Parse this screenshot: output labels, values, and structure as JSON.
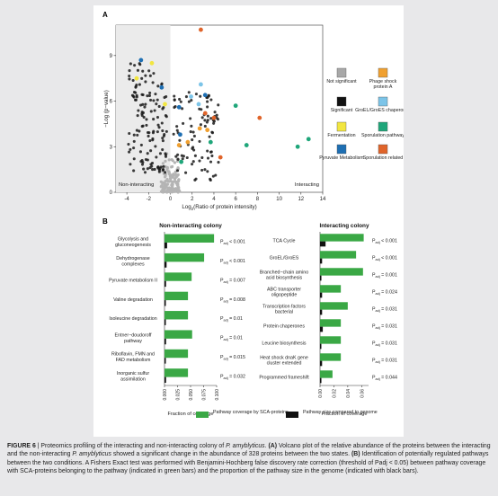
{
  "panel_a": {
    "label": "A",
    "ylabel": "−Log (p−value)",
    "xlabel_prefix": "Log",
    "xlabel_sub": "2",
    "xlabel_suffix": "(Ratio of protein intensity)",
    "region_left": "Non-interacting",
    "region_right": "Interacting",
    "legend": [
      {
        "label": "Not significant",
        "color": "#a8a8a8"
      },
      {
        "label": "Phage shock protein A",
        "color": "#f0a030"
      },
      {
        "label": "Significant",
        "color": "#111111"
      },
      {
        "label": "GroEL/GroES chaperones",
        "color": "#7cc4e8"
      },
      {
        "label": "Fermentation",
        "color": "#f2e640"
      },
      {
        "label": "Sporulation pathway",
        "color": "#1fa67a"
      },
      {
        "label": "Pyruvate Metabolism",
        "color": "#1e6fb3"
      },
      {
        "label": "Sporulation related",
        "color": "#e0642a"
      }
    ]
  },
  "panel_b": {
    "label": "B",
    "x_axis_title": "Fraction of coverage",
    "legend_green": "Pathway coverage by SCA-proteins",
    "legend_black": "Pathway size compared to genome",
    "padj_prefix": "P",
    "padj_sub": "adj"
  },
  "chart_data": [
    {
      "type": "scatter",
      "title": "",
      "xlabel": "Log2(Ratio of protein intensity)",
      "ylabel": "−Log (p−value)",
      "xlim": [
        -5,
        14
      ],
      "ylim": [
        0,
        11
      ],
      "xticks": [
        -4,
        -2,
        0,
        2,
        4,
        6,
        8,
        10,
        12,
        14
      ],
      "yticks": [
        0,
        3,
        6,
        9
      ],
      "series": [
        {
          "name": "Sporulation related",
          "points": [
            [
              2.8,
              10.7
            ],
            [
              8.2,
              4.9
            ],
            [
              4.0,
              4.9
            ],
            [
              3.2,
              5.2
            ],
            [
              4.6,
              2.3
            ]
          ]
        },
        {
          "name": "Sporulation pathway",
          "points": [
            [
              6.0,
              5.7
            ],
            [
              12.7,
              3.5
            ],
            [
              11.7,
              3.0
            ],
            [
              7.0,
              3.1
            ],
            [
              3.7,
              3.3
            ],
            [
              1.0,
              2.0
            ]
          ]
        },
        {
          "name": "Phage shock protein A",
          "points": [
            [
              1.6,
              3.3
            ],
            [
              2.7,
              4.2
            ],
            [
              3.4,
              4.1
            ],
            [
              0.8,
              3.1
            ]
          ]
        },
        {
          "name": "GroEL/GroES chaperones",
          "points": [
            [
              2.8,
              7.1
            ],
            [
              1.9,
              6.3
            ],
            [
              2.6,
              5.8
            ]
          ]
        },
        {
          "name": "Pyruvate Metabolism",
          "points": [
            [
              -2.7,
              8.7
            ],
            [
              3.2,
              6.4
            ],
            [
              0.8,
              5.6
            ],
            [
              -0.8,
              6.9
            ],
            [
              0.9,
              3.8
            ]
          ]
        },
        {
          "name": "Fermentation",
          "points": [
            [
              -1.7,
              8.5
            ],
            [
              -3.1,
              7.5
            ],
            [
              -0.5,
              5.8
            ]
          ]
        }
      ]
    },
    {
      "type": "bar",
      "title": "Non-interacting colony",
      "xlabel": "Fraction of coverage",
      "xlim": [
        0,
        0.1
      ],
      "xticks": [
        0,
        0.025,
        0.05,
        0.075,
        0.1
      ],
      "xtick_labels": [
        "0.000",
        "0.025",
        "0.050",
        "0.075",
        "0.100"
      ],
      "categories": [
        "Glycolysis and gluconeogenesis",
        "Dehydrogenase complexes",
        "Pyruvate metabolism II",
        "Valine degradation",
        "Isoleucine degradation",
        "Entner−doudoroff pathway",
        "Riboflavin, FMN and FAD metabolism",
        "Inorganic sulfur assimilation"
      ],
      "series": [
        {
          "name": "Pathway coverage by SCA-proteins",
          "values": [
            0.095,
            0.076,
            0.052,
            0.045,
            0.045,
            0.053,
            0.045,
            0.045
          ]
        },
        {
          "name": "Pathway size compared to genome",
          "values": [
            0.005,
            0.004,
            0.003,
            0.002,
            0.002,
            0.003,
            0.002,
            0.003
          ]
        }
      ],
      "padj": [
        "< 0.001",
        "< 0.001",
        "= 0.007",
        "= 0.008",
        "= 0.01",
        "= 0.01",
        "= 0.015",
        "= 0.032"
      ]
    },
    {
      "type": "bar",
      "title": "Interacting colony",
      "xlabel": "Fraction of coverage",
      "xlim": [
        0,
        0.07
      ],
      "xticks": [
        0,
        0.02,
        0.04,
        0.06
      ],
      "xtick_labels": [
        "0.00",
        "0.02",
        "0.04",
        "0.06"
      ],
      "categories": [
        "TCA Cycle",
        "GroEL/GroES",
        "Branched−chain amino acid biosynthesis",
        "ABC transporter oligopeptide",
        "Transcription factors bacterial",
        "Protein chaperones",
        "Leucine biosynthesis",
        "Heat shock dnaK gene cluster extended",
        "Programmed frameshift"
      ],
      "series": [
        {
          "name": "Pathway coverage by SCA-proteins",
          "values": [
            0.063,
            0.052,
            0.062,
            0.03,
            0.04,
            0.03,
            0.03,
            0.03,
            0.018
          ]
        },
        {
          "name": "Pathway size compared to genome",
          "values": [
            0.008,
            0.003,
            0.002,
            0.003,
            0.003,
            0.004,
            0.001,
            0.003,
            0.002
          ]
        }
      ],
      "padj": [
        "< 0.001",
        "< 0.001",
        "= 0.001",
        "= 0.024",
        "= 0.031",
        "= 0.031",
        "= 0.031",
        "= 0.031",
        "= 0.044"
      ]
    }
  ],
  "caption": {
    "fig_label": "FIGURE 6",
    "sep": " | ",
    "t1": "Proteomics profiling of the interacting and non-interacting colony of ",
    "species1": "P. amyblyticus",
    "t2": ". ",
    "a": "(A)",
    "t3": " Volcano plot of the relative abundance of the proteins between the interacting and the non-interacting ",
    "species2": "P. amyblyticus",
    "t4": " showed a significant change in the abundance of 328 proteins between the two states. ",
    "b": "(B)",
    "t5": " Identification of potentially regulated pathways between the two conditions. A Fishers Exact test was performed with Benjamini-Hochberg false discovery rate correction (threshold of Padj < 0.05) between pathway coverage with SCA-proteins belonging to the pathway (indicated in green bars) and the proportion of the pathway size in the genome (indicated with black bars)."
  }
}
